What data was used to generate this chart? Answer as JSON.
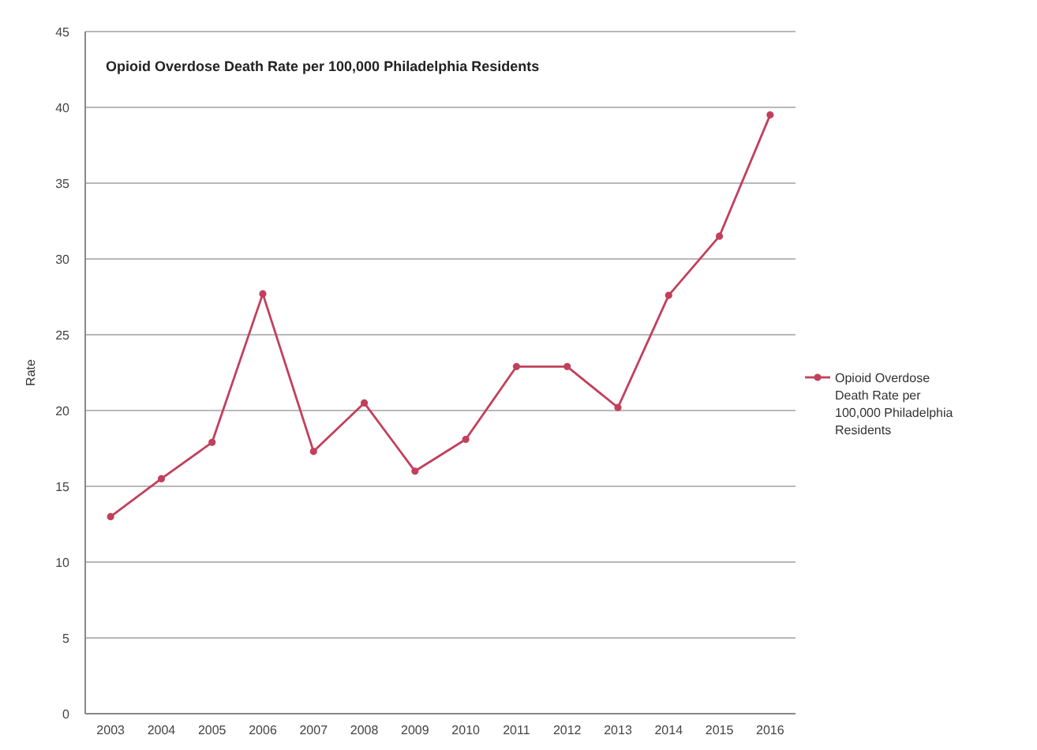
{
  "chart_data": {
    "type": "line",
    "title": "Opioid Overdose Death Rate per 100,000 Philadelphia Residents",
    "ylabel": "Rate",
    "categories": [
      "2003",
      "2004",
      "2005",
      "2006",
      "2007",
      "2008",
      "2009",
      "2010",
      "2011",
      "2012",
      "2013",
      "2014",
      "2015",
      "2016"
    ],
    "series": [
      {
        "name": "Opioid Overdose Death Rate per 100,000 Philadelphia Residents",
        "color": "#c2405c",
        "values": [
          13.0,
          15.5,
          17.9,
          27.7,
          17.3,
          20.5,
          16.0,
          18.1,
          22.9,
          22.9,
          20.2,
          27.6,
          31.5,
          39.5
        ]
      }
    ],
    "ylim": [
      0,
      45
    ],
    "yticks": [
      0,
      5,
      10,
      15,
      20,
      25,
      30,
      35,
      40,
      45
    ],
    "grid": "y",
    "legend": "right",
    "marker": "circle",
    "line_style": "solid"
  }
}
